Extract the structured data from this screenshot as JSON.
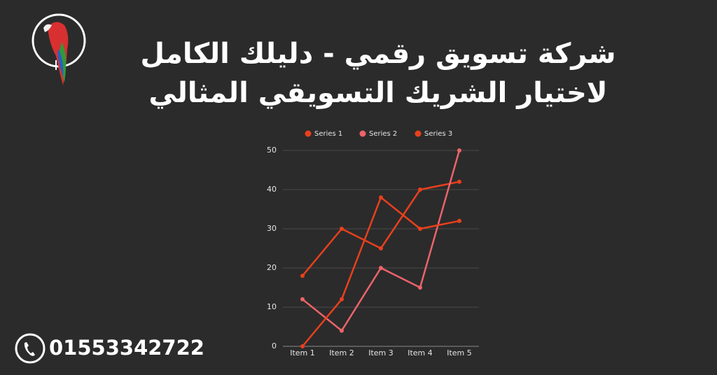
{
  "header": {
    "title_lines": [
      "شركة تسويق رقمي - دليلك الكامل",
      "لاختيار الشريك التسويقي المثالي"
    ]
  },
  "contact": {
    "phone": "01553342722"
  },
  "chart_data": {
    "type": "line",
    "categories": [
      "Item 1",
      "Item 2",
      "Item 3",
      "Item 4",
      "Item 5"
    ],
    "series": [
      {
        "name": "Series 1",
        "color": "#e8401c",
        "values": [
          18,
          30,
          25,
          40,
          42
        ]
      },
      {
        "name": "Series 2",
        "color": "#ec6469",
        "values": [
          12,
          4,
          20,
          15,
          50
        ]
      },
      {
        "name": "Series 3",
        "color": "#e8401c",
        "values": [
          0,
          12,
          38,
          30,
          32
        ]
      }
    ],
    "ylim": [
      0,
      50
    ],
    "yticks": [
      0,
      10,
      20,
      30,
      40,
      50
    ],
    "grid": true,
    "legend": "top"
  }
}
